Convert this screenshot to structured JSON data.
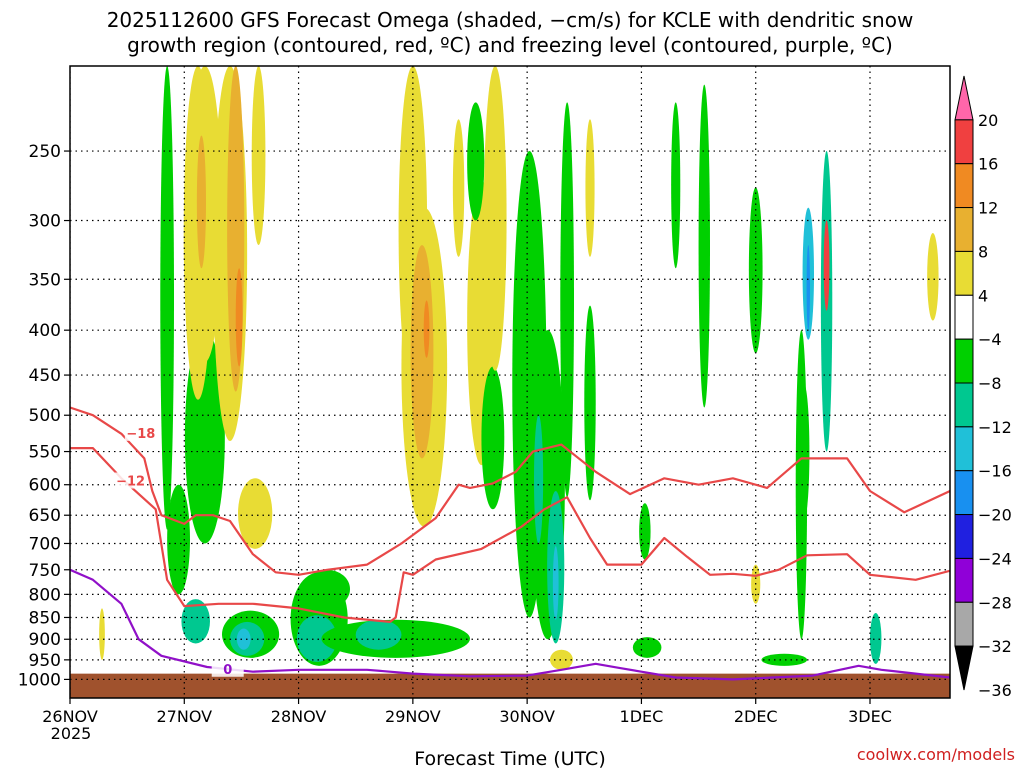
{
  "chart_data": {
    "type": "heatmap",
    "title_lines": [
      "2025112600 GFS Forecast Omega (shaded, −cm/s) for KCLE with dendritic snow",
      "growth region (contoured, red, ºC) and freezing level (contoured, purple, ºC)"
    ],
    "xlabel": "Forecast Time (UTC)",
    "ylabel": "",
    "credit": "coolwx.com/models",
    "x_ticks": [
      {
        "label": "26NOV",
        "sub": "2025",
        "day": 0
      },
      {
        "label": "27NOV",
        "sub": "",
        "day": 1
      },
      {
        "label": "28NOV",
        "sub": "",
        "day": 2
      },
      {
        "label": "29NOV",
        "sub": "",
        "day": 3
      },
      {
        "label": "30NOV",
        "sub": "",
        "day": 4
      },
      {
        "label": "1DEC",
        "sub": "",
        "day": 5
      },
      {
        "label": "2DEC",
        "sub": "",
        "day": 6
      },
      {
        "label": "3DEC",
        "sub": "",
        "day": 7
      }
    ],
    "xlim_days": [
      0,
      7.7
    ],
    "y_ticks": [
      250,
      300,
      350,
      400,
      450,
      500,
      550,
      600,
      650,
      700,
      750,
      800,
      850,
      900,
      950,
      1000
    ],
    "ylim_hpa": [
      200,
      1050
    ],
    "y_scale": "log-pressure",
    "grid": true,
    "colorbar": {
      "ticks": [
        "20",
        "16",
        "12",
        "8",
        "4",
        "−4",
        "−8",
        "−12",
        "−16",
        "−20",
        "−24",
        "−28",
        "−32",
        "−36"
      ],
      "colors": [
        "#ff66aa",
        "#f04040",
        "#f08a22",
        "#e8b030",
        "#e8dc34",
        "#ffffff",
        "#00d000",
        "#00c890",
        "#20c0d8",
        "#1890f0",
        "#2020e0",
        "#9000d8",
        "#a8a8a8",
        "#000000"
      ]
    },
    "ground_color": "#a0522d",
    "shading_regions": [
      {
        "x": 0.28,
        "p": 890,
        "w": 0.05,
        "h": 120,
        "c": "#e8dc34"
      },
      {
        "x": 0.85,
        "p": 350,
        "w": 0.12,
        "h": 650,
        "c": "#00d000"
      },
      {
        "x": 0.95,
        "p": 700,
        "w": 0.2,
        "h": 200,
        "c": "#00d000"
      },
      {
        "x": 1.1,
        "p": 860,
        "w": 0.25,
        "h": 100,
        "c": "#00c890"
      },
      {
        "x": 1.18,
        "p": 550,
        "w": 0.35,
        "h": 300,
        "c": "#00d000"
      },
      {
        "x": 1.12,
        "p": 330,
        "w": 0.25,
        "h": 300,
        "c": "#e8dc34"
      },
      {
        "x": 1.18,
        "p": 310,
        "w": 0.3,
        "h": 250,
        "c": "#e8dc34"
      },
      {
        "x": 1.15,
        "p": 290,
        "w": 0.08,
        "h": 100,
        "c": "#e8b030"
      },
      {
        "x": 1.4,
        "p": 360,
        "w": 0.3,
        "h": 350,
        "c": "#e8dc34"
      },
      {
        "x": 1.45,
        "p": 330,
        "w": 0.15,
        "h": 280,
        "c": "#e8b030"
      },
      {
        "x": 1.48,
        "p": 390,
        "w": 0.06,
        "h": 100,
        "c": "#f08a22"
      },
      {
        "x": 1.65,
        "p": 250,
        "w": 0.12,
        "h": 140,
        "c": "#e8dc34"
      },
      {
        "x": 1.62,
        "p": 650,
        "w": 0.3,
        "h": 120,
        "c": "#e8dc34"
      },
      {
        "x": 1.58,
        "p": 890,
        "w": 0.5,
        "h": 110,
        "c": "#00d000"
      },
      {
        "x": 1.55,
        "p": 900,
        "w": 0.3,
        "h": 80,
        "c": "#00c890"
      },
      {
        "x": 1.52,
        "p": 900,
        "w": 0.12,
        "h": 50,
        "c": "#20c0d8"
      },
      {
        "x": 2.18,
        "p": 860,
        "w": 0.5,
        "h": 210,
        "c": "#00d000"
      },
      {
        "x": 2.16,
        "p": 900,
        "w": 0.35,
        "h": 110,
        "c": "#00c890"
      },
      {
        "x": 2.25,
        "p": 790,
        "w": 0.4,
        "h": 80,
        "c": "#00d000"
      },
      {
        "x": 2.85,
        "p": 900,
        "w": 1.3,
        "h": 90,
        "c": "#00d000"
      },
      {
        "x": 2.7,
        "p": 890,
        "w": 0.4,
        "h": 70,
        "c": "#00c890"
      },
      {
        "x": 3.0,
        "p": 320,
        "w": 0.25,
        "h": 300,
        "c": "#e8dc34"
      },
      {
        "x": 3.1,
        "p": 480,
        "w": 0.4,
        "h": 380,
        "c": "#e8dc34"
      },
      {
        "x": 3.08,
        "p": 440,
        "w": 0.2,
        "h": 240,
        "c": "#e8b030"
      },
      {
        "x": 3.12,
        "p": 400,
        "w": 0.05,
        "h": 60,
        "c": "#f08a22"
      },
      {
        "x": 3.4,
        "p": 280,
        "w": 0.1,
        "h": 100,
        "c": "#e8dc34"
      },
      {
        "x": 3.6,
        "p": 420,
        "w": 0.25,
        "h": 300,
        "c": "#e8dc34"
      },
      {
        "x": 3.55,
        "p": 260,
        "w": 0.15,
        "h": 80,
        "c": "#00d000"
      },
      {
        "x": 3.7,
        "p": 540,
        "w": 0.2,
        "h": 200,
        "c": "#00d000"
      },
      {
        "x": 3.72,
        "p": 320,
        "w": 0.2,
        "h": 250,
        "c": "#e8dc34"
      },
      {
        "x": 4.02,
        "p": 550,
        "w": 0.3,
        "h": 600,
        "c": "#00d000"
      },
      {
        "x": 4.18,
        "p": 650,
        "w": 0.3,
        "h": 500,
        "c": "#00d000"
      },
      {
        "x": 4.25,
        "p": 760,
        "w": 0.15,
        "h": 300,
        "c": "#00c890"
      },
      {
        "x": 4.25,
        "p": 780,
        "w": 0.05,
        "h": 150,
        "c": "#20c0d8"
      },
      {
        "x": 4.1,
        "p": 600,
        "w": 0.08,
        "h": 200,
        "c": "#00c890"
      },
      {
        "x": 4.35,
        "p": 420,
        "w": 0.12,
        "h": 400,
        "c": "#00d000"
      },
      {
        "x": 4.3,
        "p": 950,
        "w": 0.2,
        "h": 50,
        "c": "#e8dc34"
      },
      {
        "x": 4.55,
        "p": 500,
        "w": 0.1,
        "h": 250,
        "c": "#00d000"
      },
      {
        "x": 4.55,
        "p": 280,
        "w": 0.08,
        "h": 100,
        "c": "#e8dc34"
      },
      {
        "x": 5.03,
        "p": 680,
        "w": 0.1,
        "h": 100,
        "c": "#00d000"
      },
      {
        "x": 5.05,
        "p": 920,
        "w": 0.25,
        "h": 50,
        "c": "#00d000"
      },
      {
        "x": 5.3,
        "p": 280,
        "w": 0.08,
        "h": 120,
        "c": "#00d000"
      },
      {
        "x": 5.55,
        "p": 350,
        "w": 0.1,
        "h": 280,
        "c": "#00d000"
      },
      {
        "x": 6.0,
        "p": 350,
        "w": 0.12,
        "h": 150,
        "c": "#00d000"
      },
      {
        "x": 6.25,
        "p": 950,
        "w": 0.4,
        "h": 30,
        "c": "#00d000"
      },
      {
        "x": 6.42,
        "p": 560,
        "w": 0.1,
        "h": 200,
        "c": "#00d000"
      },
      {
        "x": 6.4,
        "p": 650,
        "w": 0.1,
        "h": 500,
        "c": "#00d000"
      },
      {
        "x": 6.46,
        "p": 350,
        "w": 0.1,
        "h": 120,
        "c": "#20c0d8"
      },
      {
        "x": 6.46,
        "p": 360,
        "w": 0.03,
        "h": 80,
        "c": "#1890f0"
      },
      {
        "x": 6.62,
        "p": 400,
        "w": 0.1,
        "h": 300,
        "c": "#00c890"
      },
      {
        "x": 6.62,
        "p": 340,
        "w": 0.05,
        "h": 80,
        "c": "#f04040"
      },
      {
        "x": 6.0,
        "p": 780,
        "w": 0.08,
        "h": 80,
        "c": "#e8dc34"
      },
      {
        "x": 7.05,
        "p": 900,
        "w": 0.1,
        "h": 120,
        "c": "#00c890"
      },
      {
        "x": 7.55,
        "p": 350,
        "w": 0.1,
        "h": 80,
        "c": "#e8dc34"
      }
    ],
    "dgz_contours": [
      {
        "label": "−18",
        "label_at": {
          "x": 0.62,
          "p": 525
        },
        "points": [
          [
            0,
            490
          ],
          [
            0.2,
            500
          ],
          [
            0.45,
            525
          ],
          [
            0.65,
            560
          ],
          [
            0.72,
            610
          ],
          [
            0.8,
            650
          ],
          [
            1.0,
            665
          ],
          [
            1.1,
            650
          ],
          [
            1.25,
            650
          ],
          [
            1.4,
            660
          ],
          [
            1.6,
            720
          ],
          [
            1.8,
            755
          ],
          [
            2.0,
            760
          ],
          [
            2.25,
            750
          ],
          [
            2.6,
            740
          ],
          [
            2.9,
            700
          ],
          [
            3.2,
            655
          ],
          [
            3.4,
            600
          ],
          [
            3.5,
            605
          ],
          [
            3.7,
            598
          ],
          [
            3.9,
            580
          ],
          [
            4.05,
            550
          ],
          [
            4.3,
            540
          ],
          [
            4.6,
            580
          ],
          [
            4.9,
            615
          ],
          [
            5.2,
            590
          ],
          [
            5.5,
            600
          ],
          [
            5.8,
            590
          ],
          [
            6.1,
            605
          ],
          [
            6.4,
            560
          ],
          [
            6.8,
            560
          ],
          [
            7.0,
            610
          ],
          [
            7.3,
            645
          ],
          [
            7.7,
            610
          ]
        ]
      },
      {
        "label": "−12",
        "label_at": {
          "x": 0.53,
          "p": 595
        },
        "points": [
          [
            0,
            545
          ],
          [
            0.2,
            545
          ],
          [
            0.45,
            590
          ],
          [
            0.75,
            640
          ],
          [
            0.85,
            770
          ],
          [
            1.0,
            825
          ],
          [
            1.3,
            820
          ],
          [
            1.6,
            820
          ],
          [
            2.0,
            830
          ],
          [
            2.4,
            850
          ],
          [
            2.8,
            860
          ],
          [
            2.85,
            850
          ],
          [
            2.92,
            755
          ],
          [
            3.0,
            760
          ],
          [
            3.2,
            730
          ],
          [
            3.6,
            710
          ],
          [
            3.95,
            670
          ],
          [
            4.15,
            640
          ],
          [
            4.35,
            620
          ],
          [
            4.55,
            690
          ],
          [
            4.7,
            740
          ],
          [
            5.0,
            740
          ],
          [
            5.2,
            690
          ],
          [
            5.4,
            725
          ],
          [
            5.6,
            760
          ],
          [
            5.8,
            758
          ],
          [
            6.0,
            762
          ],
          [
            6.2,
            750
          ],
          [
            6.45,
            722
          ],
          [
            6.8,
            720
          ],
          [
            7.0,
            760
          ],
          [
            7.4,
            770
          ],
          [
            7.7,
            752
          ]
        ]
      }
    ],
    "freezing_contours": [
      {
        "label": "0",
        "label_at": {
          "x": 1.38,
          "p": 975
        },
        "points": [
          [
            0,
            750
          ],
          [
            0.2,
            770
          ],
          [
            0.45,
            820
          ],
          [
            0.6,
            900
          ],
          [
            0.8,
            940
          ],
          [
            1.2,
            968
          ],
          [
            1.6,
            980
          ],
          [
            2.0,
            975
          ],
          [
            2.6,
            975
          ],
          [
            3.0,
            985
          ],
          [
            3.5,
            992
          ],
          [
            4.0,
            990
          ],
          [
            4.3,
            975
          ],
          [
            4.6,
            960
          ],
          [
            4.8,
            970
          ],
          [
            5.0,
            980
          ],
          [
            5.3,
            995
          ],
          [
            5.8,
            1000
          ],
          [
            6.5,
            990
          ],
          [
            6.9,
            965
          ],
          [
            7.1,
            975
          ],
          [
            7.7,
            995
          ]
        ]
      }
    ]
  }
}
